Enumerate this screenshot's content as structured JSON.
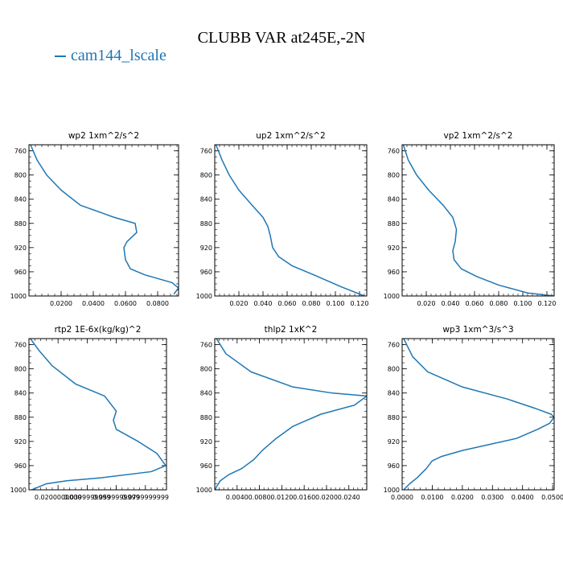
{
  "figure": {
    "title": "CLUBB VAR at245E,-2N",
    "legend": [
      {
        "label": "cam144_lscale",
        "color": "#1f77b4"
      }
    ]
  },
  "chart_data": [
    {
      "type": "line",
      "title": "wp2   1xm^2/s^2",
      "xlim": [
        0.0,
        0.093
      ],
      "ylim": [
        1000,
        750
      ],
      "x_ticks": [
        0.02,
        0.04,
        0.06,
        0.08
      ],
      "x_tick_labels": [
        "0.0200",
        "0.0400",
        "0.0600",
        "0.0800"
      ],
      "y_ticks": [
        760,
        800,
        840,
        880,
        920,
        960,
        1000
      ],
      "y_tick_labels": [
        "760",
        "800",
        "840",
        "880",
        "920",
        "960",
        "1000"
      ],
      "series": [
        {
          "name": "cam144_lscale",
          "color": "#1f77b4",
          "x": [
            0.001,
            0.005,
            0.011,
            0.02,
            0.032,
            0.053,
            0.066,
            0.067,
            0.061,
            0.059,
            0.06,
            0.063,
            0.072,
            0.089,
            0.093,
            0.09
          ],
          "y": [
            750,
            775,
            800,
            825,
            850,
            870,
            880,
            895,
            910,
            920,
            940,
            955,
            965,
            978,
            987,
            997
          ]
        }
      ]
    },
    {
      "type": "line",
      "title": "up2   1xm^2/s^2",
      "xlim": [
        0.0,
        0.126
      ],
      "ylim": [
        1000,
        750
      ],
      "x_ticks": [
        0.02,
        0.04,
        0.06,
        0.08,
        0.1,
        0.12
      ],
      "x_tick_labels": [
        "0.020",
        "0.040",
        "0.060",
        "0.080",
        "0.100",
        "0.120"
      ],
      "y_ticks": [
        760,
        800,
        840,
        880,
        920,
        960,
        1000
      ],
      "y_tick_labels": [
        "760",
        "800",
        "840",
        "880",
        "920",
        "960",
        "1000"
      ],
      "series": [
        {
          "name": "cam144_lscale",
          "color": "#1f77b4",
          "x": [
            0.001,
            0.006,
            0.012,
            0.02,
            0.031,
            0.04,
            0.044,
            0.046,
            0.048,
            0.053,
            0.064,
            0.082,
            0.105,
            0.124
          ],
          "y": [
            750,
            775,
            800,
            825,
            850,
            870,
            885,
            900,
            920,
            935,
            950,
            965,
            985,
            1000
          ]
        }
      ]
    },
    {
      "type": "line",
      "title": "vp2   1xm^2/s^2",
      "xlim": [
        0.0,
        0.126
      ],
      "ylim": [
        1000,
        750
      ],
      "x_ticks": [
        0.02,
        0.04,
        0.06,
        0.08,
        0.1,
        0.12
      ],
      "x_tick_labels": [
        "0.020",
        "0.040",
        "0.060",
        "0.080",
        "0.100",
        "0.120"
      ],
      "y_ticks": [
        760,
        800,
        840,
        880,
        920,
        960,
        1000
      ],
      "y_tick_labels": [
        "760",
        "800",
        "840",
        "880",
        "920",
        "960",
        "1000"
      ],
      "series": [
        {
          "name": "cam144_lscale",
          "color": "#1f77b4",
          "x": [
            0.001,
            0.005,
            0.012,
            0.022,
            0.034,
            0.042,
            0.045,
            0.044,
            0.042,
            0.043,
            0.049,
            0.062,
            0.08,
            0.104,
            0.126
          ],
          "y": [
            750,
            775,
            800,
            825,
            850,
            870,
            890,
            910,
            925,
            940,
            955,
            968,
            982,
            995,
            1000
          ]
        }
      ]
    },
    {
      "type": "line",
      "title": "rtp2   1E-6x(kg/kg)^2",
      "xlim": [
        0.0,
        0.0945
      ],
      "ylim": [
        1000,
        750
      ],
      "x_ticks": [
        0.02,
        0.04,
        0.06,
        0.08
      ],
      "x_tick_labels": [
        "0.0200000000",
        "0.0399999999",
        "0.0599999999",
        "0.0799999999"
      ],
      "y_ticks": [
        760,
        800,
        840,
        880,
        920,
        960,
        1000
      ],
      "y_tick_labels": [
        "760",
        "800",
        "840",
        "880",
        "920",
        "960",
        "1000"
      ],
      "series": [
        {
          "name": "cam144_lscale",
          "color": "#1f77b4",
          "x": [
            0.001,
            0.007,
            0.016,
            0.032,
            0.052,
            0.06,
            0.058,
            0.06,
            0.075,
            0.088,
            0.094,
            0.084,
            0.05,
            0.026,
            0.012,
            0.002
          ],
          "y": [
            750,
            770,
            795,
            825,
            845,
            870,
            885,
            900,
            920,
            940,
            960,
            970,
            980,
            985,
            990,
            1000
          ]
        }
      ]
    },
    {
      "type": "line",
      "title": "thlp2   1xK^2",
      "xlim": [
        0.0,
        0.0272
      ],
      "ylim": [
        1000,
        750
      ],
      "x_ticks": [
        0.004,
        0.008,
        0.012,
        0.016,
        0.02,
        0.024
      ],
      "x_tick_labels": [
        "0.0040",
        "0.0080",
        "0.0120",
        "0.0160",
        "0.0200",
        "0.0240"
      ],
      "y_ticks": [
        760,
        800,
        840,
        880,
        920,
        960,
        1000
      ],
      "y_tick_labels": [
        "760",
        "800",
        "840",
        "880",
        "920",
        "960",
        "1000"
      ],
      "series": [
        {
          "name": "cam144_lscale",
          "color": "#1f77b4",
          "x": [
            0.0003,
            0.002,
            0.0065,
            0.014,
            0.021,
            0.0272,
            0.025,
            0.019,
            0.014,
            0.011,
            0.0085,
            0.007,
            0.0048,
            0.0025,
            0.001,
            0.0003,
            0.0001
          ],
          "y": [
            750,
            775,
            805,
            830,
            840,
            845,
            860,
            875,
            895,
            915,
            935,
            950,
            965,
            975,
            985,
            995,
            1000
          ]
        }
      ]
    },
    {
      "type": "line",
      "title": "wp3   1xm^3/s^3",
      "xlim": [
        0.0,
        0.0505
      ],
      "ylim": [
        1000,
        750
      ],
      "x_ticks": [
        0.0,
        0.01,
        0.02,
        0.03,
        0.04,
        0.05
      ],
      "x_tick_labels": [
        "0.0000",
        "0.0100",
        "0.0200",
        "0.0300",
        "0.0400",
        "0.0500"
      ],
      "y_ticks": [
        760,
        800,
        840,
        880,
        920,
        960,
        1000
      ],
      "y_tick_labels": [
        "760",
        "800",
        "840",
        "880",
        "920",
        "960",
        "1000"
      ],
      "series": [
        {
          "name": "cam144_lscale",
          "color": "#1f77b4",
          "x": [
            0.0005,
            0.0035,
            0.0085,
            0.02,
            0.035,
            0.044,
            0.0495,
            0.0505,
            0.049,
            0.045,
            0.038,
            0.029,
            0.02,
            0.013,
            0.01,
            0.008,
            0.005,
            0.0025,
            0.0005
          ],
          "y": [
            750,
            780,
            805,
            830,
            850,
            865,
            875,
            880,
            890,
            900,
            915,
            925,
            935,
            945,
            952,
            965,
            980,
            990,
            1000
          ]
        }
      ]
    }
  ]
}
